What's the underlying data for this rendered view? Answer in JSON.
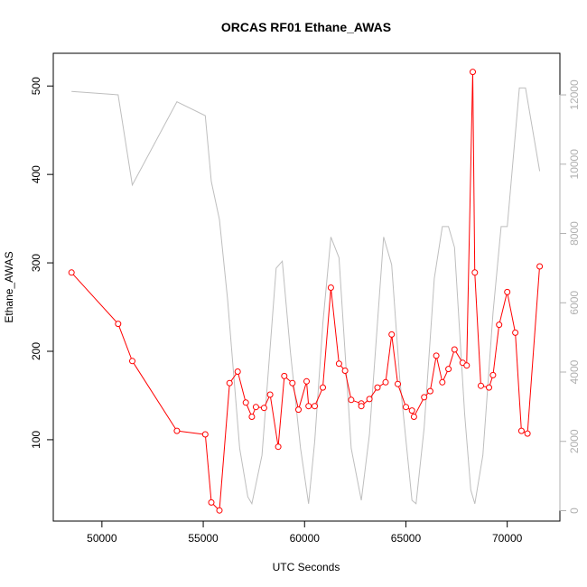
{
  "chart_data": {
    "type": "line",
    "title": "ORCAS RF01 Ethane_AWAS",
    "xlabel": "UTC Seconds",
    "ylabel": "Ethane_AWAS",
    "xlim": [
      47600,
      72600
    ],
    "ylim": [
      8,
      537
    ],
    "y2lim": [
      -300,
      13200
    ],
    "x_ticks": [
      50000,
      55000,
      60000,
      65000,
      70000
    ],
    "y_ticks": [
      100,
      200,
      300,
      400,
      500
    ],
    "y2_ticks": [
      0,
      2000,
      4000,
      6000,
      8000,
      10000,
      12000
    ],
    "x_tick_labels": [
      "50000",
      "55000",
      "60000",
      "65000",
      "70000"
    ],
    "y_tick_labels": [
      "100",
      "200",
      "300",
      "400",
      "500"
    ],
    "y2_tick_labels": [
      "0",
      "2000",
      "4000",
      "6000",
      "8000",
      "10000",
      "12000"
    ],
    "colors": {
      "primary": "#ff0000",
      "secondary": "#bebebe",
      "axis": "#000000"
    },
    "series": [
      {
        "axis": "left",
        "style": "line+points",
        "x": [
          48500,
          50800,
          51500,
          53700,
          55100,
          55400,
          55800,
          56300,
          56700,
          57100,
          57400,
          57600,
          58000,
          58300,
          58700,
          59000,
          59400,
          59700,
          60100,
          60200,
          60500,
          60900,
          61300,
          61700,
          62000,
          62300,
          62800,
          62800,
          63200,
          63600,
          64000,
          64300,
          64600,
          65000,
          65300,
          65400,
          65900,
          66200,
          66500,
          66800,
          67100,
          67400,
          67800,
          68000,
          68300,
          68400,
          68700,
          69100,
          69300,
          69600,
          70000,
          70400,
          70700,
          71000,
          71600
        ],
        "y": [
          289,
          231,
          189,
          110,
          106,
          29,
          20,
          164,
          177,
          142,
          126,
          137,
          136,
          151,
          92,
          172,
          164,
          134,
          166,
          138,
          138,
          159,
          272,
          186,
          178,
          145,
          141,
          138,
          146,
          159,
          165,
          219,
          163,
          137,
          133,
          126,
          148,
          155,
          195,
          165,
          180,
          202,
          187,
          184,
          516,
          289,
          161,
          159,
          173,
          230,
          267,
          221,
          110,
          107,
          296
        ]
      },
      {
        "axis": "right",
        "style": "line",
        "x": [
          48500,
          50800,
          51500,
          53700,
          55100,
          55400,
          55800,
          56200,
          56800,
          57200,
          57400,
          57900,
          58600,
          58900,
          59300,
          59800,
          60200,
          60500,
          60900,
          61300,
          61700,
          62300,
          62800,
          63200,
          63900,
          64300,
          64700,
          65300,
          65500,
          65900,
          66400,
          66800,
          67100,
          67400,
          67900,
          68200,
          68400,
          68800,
          69300,
          69700,
          70000,
          70600,
          70900,
          71600
        ],
        "y": [
          12100,
          12000,
          9400,
          11800,
          11400,
          9500,
          8400,
          6100,
          1800,
          400,
          200,
          1600,
          7000,
          7200,
          4600,
          1800,
          200,
          2000,
          5400,
          7900,
          7300,
          1800,
          300,
          2200,
          7900,
          7100,
          3800,
          300,
          200,
          2400,
          6700,
          8200,
          8200,
          7600,
          2800,
          600,
          200,
          1600,
          5700,
          8200,
          8200,
          12200,
          12200,
          9800
        ]
      }
    ]
  }
}
